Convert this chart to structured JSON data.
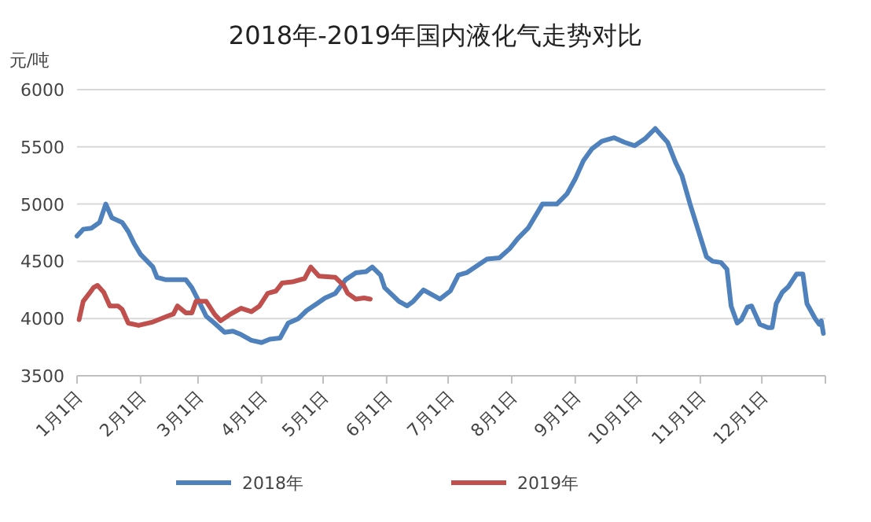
{
  "chart_data": {
    "type": "line",
    "title": "2018年-2019年国内液化气走势对比",
    "ylabel": "元/吨",
    "xlim": [
      "--01-01",
      "--12-31"
    ],
    "ylim": [
      3500,
      6000
    ],
    "yticks": [
      3500,
      4000,
      4500,
      5000,
      5500,
      6000
    ],
    "xticks": [
      {
        "value": "--01-01",
        "label": "1月1日"
      },
      {
        "value": "--02-01",
        "label": "2月1日"
      },
      {
        "value": "--03-01",
        "label": "3月1日"
      },
      {
        "value": "--04-01",
        "label": "4月1日"
      },
      {
        "value": "--05-01",
        "label": "5月1日"
      },
      {
        "value": "--06-01",
        "label": "6月1日"
      },
      {
        "value": "--07-01",
        "label": "7月1日"
      },
      {
        "value": "--08-01",
        "label": "8月1日"
      },
      {
        "value": "--09-01",
        "label": "9月1日"
      },
      {
        "value": "--10-01",
        "label": "10月1日"
      },
      {
        "value": "--11-01",
        "label": "11月1日"
      },
      {
        "value": "--12-01",
        "label": "12月1日"
      }
    ],
    "grid": "y",
    "legend": "bottom",
    "line_style": "solid",
    "series": [
      {
        "name": "2018年",
        "color": "#4f81bd",
        "x": [
          "--01-01",
          "--01-04",
          "--01-08",
          "--01-12",
          "--01-15",
          "--01-18",
          "--01-23",
          "--01-26",
          "--01-29",
          "--02-01",
          "--02-07",
          "--02-09",
          "--02-13",
          "--02-23",
          "--02-26",
          "--03-02",
          "--03-05",
          "--03-09",
          "--03-14",
          "--03-18",
          "--03-22",
          "--03-27",
          "--04-01",
          "--04-05",
          "--04-10",
          "--04-14",
          "--04-19",
          "--04-23",
          "--04-28",
          "--05-02",
          "--05-07",
          "--05-12",
          "--05-17",
          "--05-22",
          "--05-25",
          "--05-29",
          "--05-31",
          "--06-07",
          "--06-11",
          "--06-14",
          "--06-19",
          "--06-27",
          "--07-02",
          "--07-06",
          "--07-10",
          "--07-15",
          "--07-20",
          "--07-26",
          "--07-31",
          "--08-04",
          "--08-09",
          "--08-16",
          "--08-23",
          "--08-28",
          "--09-01",
          "--09-05",
          "--09-09",
          "--09-14",
          "--09-20",
          "--09-25",
          "--09-30",
          "--10-05",
          "--10-10",
          "--10-16",
          "--10-20",
          "--10-23",
          "--10-27",
          "--10-31",
          "--11-04",
          "--11-07",
          "--11-11",
          "--11-14",
          "--11-16",
          "--11-19",
          "--11-21",
          "--11-24",
          "--11-26",
          "--11-30",
          "--12-04",
          "--12-06",
          "--12-08",
          "--12-11",
          "--12-14",
          "--12-18",
          "--12-21",
          "--12-23",
          "--12-27",
          "--12-29",
          "--12-30",
          "--12-31"
        ],
        "values": [
          4720,
          4780,
          4790,
          4840,
          5000,
          4880,
          4840,
          4760,
          4650,
          4560,
          4450,
          4360,
          4340,
          4340,
          4270,
          4130,
          4020,
          3960,
          3880,
          3890,
          3860,
          3810,
          3790,
          3820,
          3830,
          3960,
          4000,
          4070,
          4130,
          4180,
          4220,
          4340,
          4400,
          4410,
          4450,
          4380,
          4270,
          4150,
          4110,
          4150,
          4250,
          4170,
          4240,
          4380,
          4400,
          4460,
          4520,
          4530,
          4610,
          4700,
          4790,
          5000,
          5000,
          5090,
          5220,
          5380,
          5480,
          5550,
          5580,
          5540,
          5510,
          5570,
          5660,
          5540,
          5360,
          5250,
          5000,
          4770,
          4540,
          4500,
          4490,
          4430,
          4110,
          3960,
          3990,
          4100,
          4110,
          3950,
          3920,
          3920,
          4130,
          4230,
          4280,
          4390,
          4390,
          4130,
          4000,
          3950,
          3980,
          3870
        ]
      },
      {
        "name": "2019年",
        "color": "#c0504d",
        "x": [
          "--01-02",
          "--01-04",
          "--01-07",
          "--01-09",
          "--01-11",
          "--01-14",
          "--01-17",
          "--01-21",
          "--01-23",
          "--01-26",
          "--01-31",
          "--02-07",
          "--02-14",
          "--02-17",
          "--02-19",
          "--02-23",
          "--02-26",
          "--02-28",
          "--03-05",
          "--03-09",
          "--03-12",
          "--03-17",
          "--03-22",
          "--03-27",
          "--03-31",
          "--04-04",
          "--04-08",
          "--04-11",
          "--04-16",
          "--04-22",
          "--04-25",
          "--04-29",
          "--05-07",
          "--05-11",
          "--05-13",
          "--05-17",
          "--05-21",
          "--05-24"
        ],
        "values": [
          3990,
          4150,
          4220,
          4270,
          4290,
          4230,
          4110,
          4110,
          4080,
          3960,
          3940,
          3970,
          4020,
          4040,
          4110,
          4050,
          4050,
          4150,
          4150,
          4040,
          3980,
          4040,
          4090,
          4060,
          4110,
          4220,
          4240,
          4310,
          4320,
          4350,
          4450,
          4370,
          4360,
          4290,
          4220,
          4170,
          4180,
          4170
        ]
      }
    ]
  }
}
